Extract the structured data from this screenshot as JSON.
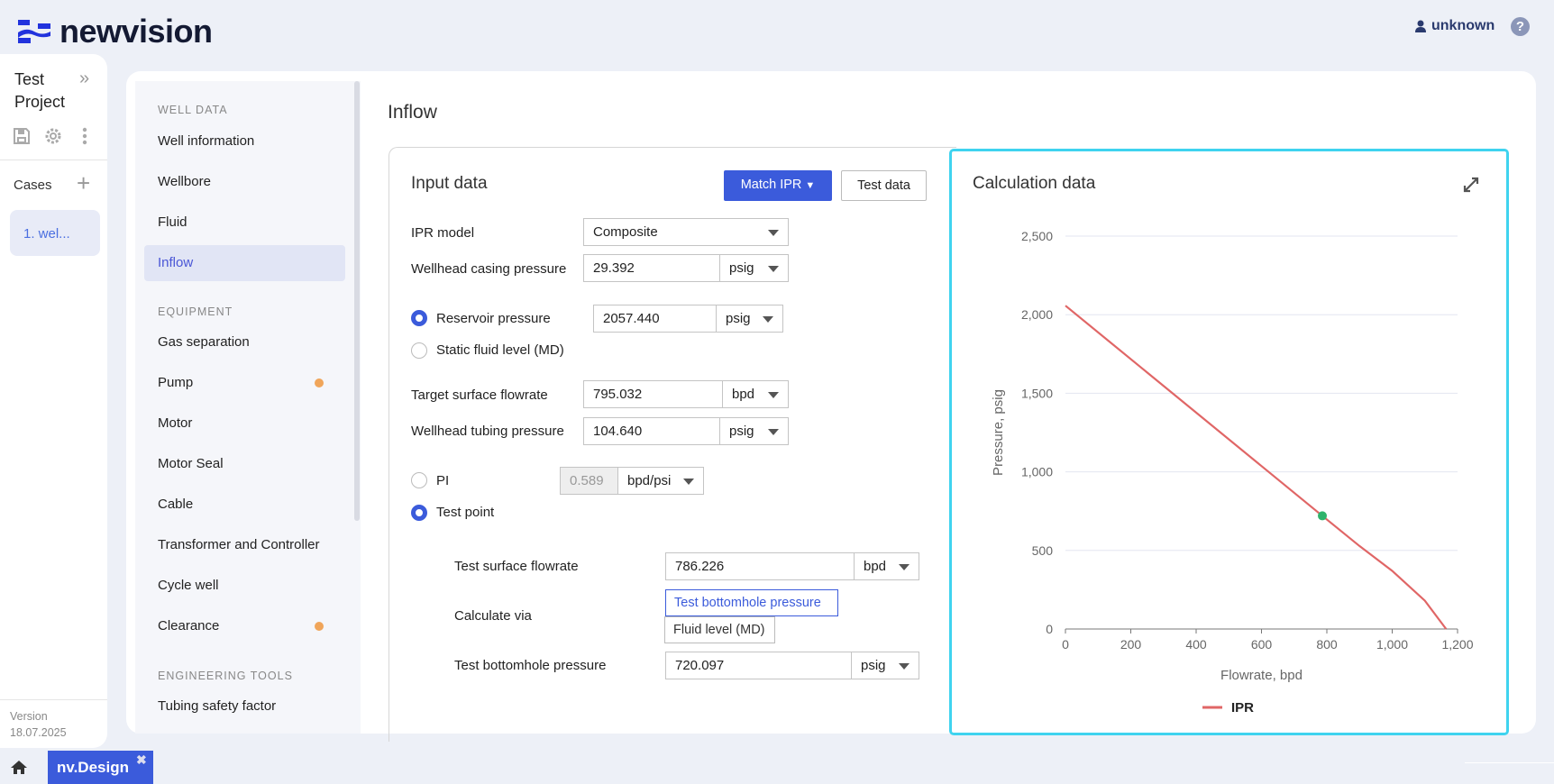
{
  "header": {
    "brand": "newvision",
    "user": "unknown"
  },
  "project": {
    "name_line1": "Test",
    "name_line2": "Project",
    "cases_label": "Cases",
    "case_item": "1. wel...",
    "version_label": "Version",
    "version": "18.07.2025"
  },
  "nav": {
    "sections": [
      {
        "title": "WELL DATA",
        "items": [
          {
            "label": "Well information"
          },
          {
            "label": "Wellbore"
          },
          {
            "label": "Fluid"
          },
          {
            "label": "Inflow",
            "active": true
          }
        ]
      },
      {
        "title": "EQUIPMENT",
        "items": [
          {
            "label": "Gas separation"
          },
          {
            "label": "Pump",
            "warn": true
          },
          {
            "label": "Motor"
          },
          {
            "label": "Motor Seal"
          },
          {
            "label": "Cable"
          },
          {
            "label": "Transformer and Controller"
          },
          {
            "label": "Cycle well"
          },
          {
            "label": "Clearance",
            "warn": true
          }
        ]
      },
      {
        "title": "ENGINEERING TOOLS",
        "items": [
          {
            "label": "Tubing safety factor"
          }
        ]
      }
    ]
  },
  "page": {
    "title": "Inflow"
  },
  "input": {
    "title": "Input data",
    "match_ipr": "Match IPR",
    "test_data": "Test data",
    "ipr_model": {
      "label": "IPR model",
      "value": "Composite"
    },
    "casing_pressure": {
      "label": "Wellhead casing pressure",
      "value": "29.392",
      "unit": "psig"
    },
    "reservoir_pressure": {
      "label": "Reservoir pressure",
      "value": "2057.440",
      "unit": "psig",
      "selected": true
    },
    "static_fluid_level": {
      "label": "Static fluid level (MD)",
      "selected": false
    },
    "target_flowrate": {
      "label": "Target surface flowrate",
      "value": "795.032",
      "unit": "bpd"
    },
    "tubing_pressure": {
      "label": "Wellhead tubing pressure",
      "value": "104.640",
      "unit": "psig"
    },
    "pi": {
      "label": "PI",
      "value": "0.589",
      "unit": "bpd/psi",
      "selected": false
    },
    "test_point": {
      "label": "Test point",
      "selected": true
    },
    "test_flowrate": {
      "label": "Test surface flowrate",
      "value": "786.226",
      "unit": "bpd"
    },
    "calculate_via": {
      "label": "Calculate via",
      "options": [
        "Test bottomhole pressure",
        "Fluid level (MD)"
      ],
      "selected": "Test bottomhole pressure"
    },
    "test_bhp": {
      "label": "Test bottomhole pressure",
      "value": "720.097",
      "unit": "psig"
    }
  },
  "chart_panel": {
    "title": "Calculation data"
  },
  "chart_data": {
    "type": "line",
    "xlabel": "Flowrate, bpd",
    "ylabel": "Pressure, psig",
    "xlim": [
      0,
      1200
    ],
    "ylim": [
      0,
      2500
    ],
    "xticks": [
      "0",
      "200",
      "400",
      "600",
      "800",
      "1,000",
      "1,200"
    ],
    "yticks": [
      "0",
      "500",
      "1,000",
      "1,500",
      "2,000",
      "2,500"
    ],
    "grid": true,
    "legend": "bottom",
    "series": [
      {
        "name": "IPR",
        "color": "#e06666",
        "x": [
          0,
          786.226,
          900,
          1000,
          1100,
          1165
        ],
        "y": [
          2057.44,
          720.1,
          528,
          370,
          180,
          0
        ]
      }
    ],
    "test_point": {
      "x": 786.226,
      "y": 720.097,
      "color": "#2fb36b"
    }
  },
  "footer": {
    "home": "home",
    "tab": "nv.Design"
  },
  "colors": {
    "accent": "#3b5bdb",
    "chart_border": "#3fd3ef",
    "warn": "#f0a55a"
  }
}
